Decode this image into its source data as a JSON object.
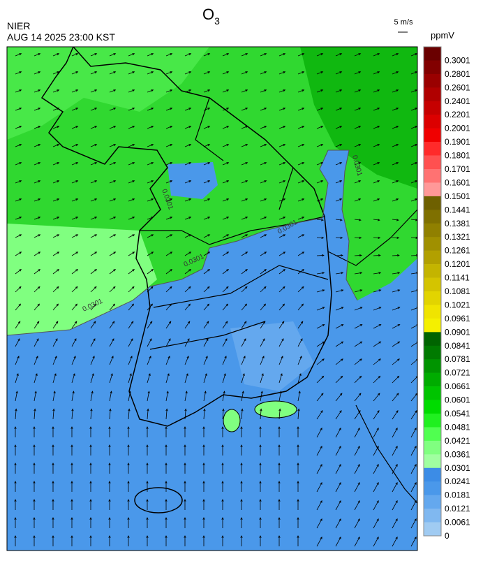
{
  "header": {
    "title": "O",
    "title_sub": "3",
    "org": "NIER",
    "datetime": "AUG 14 2025 23:00 KST",
    "wind_scale": "5 m/s",
    "unit": "ppmV"
  },
  "colorbar": {
    "labels": [
      "0.3001",
      "0.2801",
      "0.2601",
      "0.2401",
      "0.2201",
      "0.2001",
      "0.1901",
      "0.1801",
      "0.1701",
      "0.1601",
      "0.1501",
      "0.1441",
      "0.1381",
      "0.1321",
      "0.1261",
      "0.1201",
      "0.1141",
      "0.1081",
      "0.1021",
      "0.0961",
      "0.0901",
      "0.0841",
      "0.0781",
      "0.0721",
      "0.0661",
      "0.0601",
      "0.0541",
      "0.0481",
      "0.0421",
      "0.0361",
      "0.0301",
      "0.0241",
      "0.0181",
      "0.0121",
      "0.0061",
      "0"
    ],
    "colors": [
      "#6a0000",
      "#820000",
      "#9a0000",
      "#b00000",
      "#c60000",
      "#dc0000",
      "#f00000",
      "#ff2a2a",
      "#ff5050",
      "#ff7272",
      "#ff9898",
      "#6e6000",
      "#7f7000",
      "#908000",
      "#a09000",
      "#b2a000",
      "#c4b400",
      "#d4c400",
      "#e2d400",
      "#f0e400",
      "#f5f000",
      "#006400",
      "#007a00",
      "#009400",
      "#00ac00",
      "#00c400",
      "#00dc00",
      "#20f020",
      "#50ff50",
      "#80ff80",
      "#a0ffa0",
      "#3c8ce6",
      "#4a98ea",
      "#64a8ee",
      "#80b8f0",
      "#a0cbf2"
    ]
  },
  "contour_labels": [
    "0.0301",
    "0.0301",
    "0.0301",
    "0.0301",
    "0.0301"
  ]
}
